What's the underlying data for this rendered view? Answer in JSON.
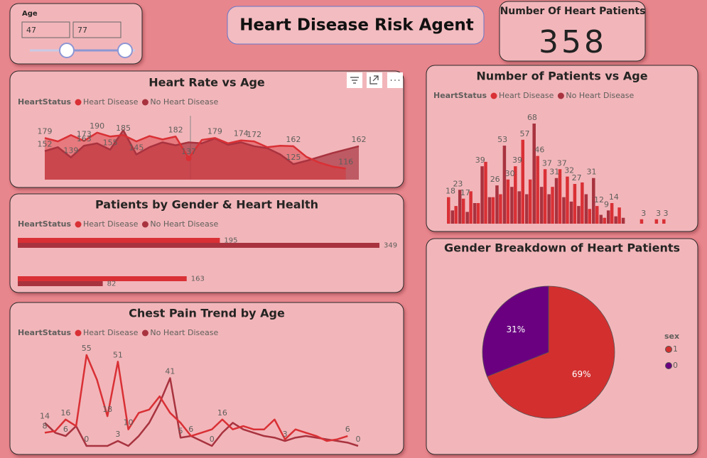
{
  "slicer": {
    "title": "Age",
    "range": [
      47,
      77
    ]
  },
  "header": {
    "title": "Heart Disease Risk Agent"
  },
  "kpi": {
    "label": "Number Of Heart Patients",
    "value": 358
  },
  "chart_data": [
    {
      "type": "area",
      "title": "Heart Rate vs Age",
      "legend_title": "HeartStatus",
      "ylim": [
        93,
        200
      ],
      "series": [
        {
          "name": "Heart Disease",
          "color": "#d93035",
          "values": [
            179,
            172,
            185,
            173,
            190,
            182,
            185,
            172,
            183,
            176,
            182,
            137,
            175,
            179,
            168,
            174,
            172,
            160,
            163,
            162,
            140,
            128,
            120,
            116,
            null
          ],
          "value_labels": [
            "179",
            null,
            null,
            "173",
            "190",
            null,
            "185",
            null,
            null,
            null,
            "182",
            "137",
            null,
            "179",
            null,
            "174",
            "172",
            null,
            null,
            "162",
            null,
            null,
            null,
            "116",
            null
          ]
        },
        {
          "name": "No Heart Disease",
          "color": "#a8333f",
          "values": [
            152,
            160,
            139,
            163,
            168,
            155,
            195,
            145,
            160,
            170,
            164,
            170,
            168,
            178,
            165,
            170,
            162,
            158,
            145,
            125,
            132,
            140,
            148,
            155,
            162
          ],
          "value_labels": [
            "152",
            null,
            "139",
            "163",
            null,
            "155",
            null,
            "145",
            null,
            null,
            null,
            null,
            null,
            null,
            null,
            null,
            null,
            null,
            null,
            "125",
            null,
            null,
            null,
            null,
            "162"
          ]
        }
      ]
    },
    {
      "type": "hbar",
      "title": "Patients by Gender & Heart Health",
      "legend_title": "HeartStatus",
      "categories": [
        null,
        null
      ],
      "xlim": [
        0,
        349
      ],
      "series": [
        {
          "name": "Heart Disease",
          "color": "#d93035",
          "values": [
            195,
            163
          ]
        },
        {
          "name": "No Heart Disease",
          "color": "#a8333f",
          "values": [
            349,
            82
          ]
        }
      ]
    },
    {
      "type": "line",
      "title": "Chest Pain Trend by Age",
      "legend_title": "HeartStatus",
      "ylim": [
        0,
        55
      ],
      "series": [
        {
          "name": "Heart Disease",
          "color": "#d93035",
          "values": [
            8,
            9,
            16,
            12,
            55,
            40,
            18,
            51,
            10,
            20,
            22,
            30,
            20,
            14,
            6,
            8,
            10,
            16,
            10,
            12,
            10,
            10,
            16,
            4,
            10,
            8,
            6,
            3,
            4,
            6,
            null
          ],
          "value_labels": [
            "8",
            null,
            "16",
            null,
            "55",
            null,
            "18",
            "51",
            "10",
            null,
            null,
            null,
            null,
            null,
            null,
            null,
            null,
            "16",
            null,
            null,
            null,
            null,
            null,
            null,
            null,
            null,
            null,
            null,
            null,
            "6",
            null
          ]
        },
        {
          "name": "No Heart Disease",
          "color": "#a8333f",
          "values": [
            14,
            8,
            6,
            12,
            0,
            0,
            0,
            3,
            0,
            6,
            14,
            26,
            41,
            5,
            6,
            3,
            0,
            8,
            14,
            10,
            8,
            6,
            5,
            3,
            5,
            6,
            5,
            4,
            3,
            2,
            0
          ],
          "value_labels": [
            "14",
            null,
            "6",
            null,
            "0",
            null,
            null,
            "3",
            null,
            null,
            null,
            null,
            "41",
            "5",
            "6",
            null,
            "0",
            null,
            null,
            null,
            null,
            null,
            null,
            "3",
            null,
            null,
            null,
            null,
            null,
            null,
            "0"
          ]
        }
      ]
    },
    {
      "type": "column",
      "title": "Number of Patients vs Age",
      "legend_title": "HeartStatus",
      "ylim": [
        0,
        68
      ],
      "series": [
        {
          "name": "Heart Disease",
          "color": "#d93035",
          "values": [
            18,
            12,
            17,
            22,
            14,
            42,
            18,
            20,
            30,
            39,
            57,
            30,
            46,
            37,
            25,
            37,
            32,
            27,
            28,
            10,
            12,
            4,
            14,
            11,
            0,
            0,
            3,
            0,
            3,
            3
          ],
          "value_labels": [
            "18",
            null,
            "17",
            null,
            null,
            null,
            null,
            null,
            "30",
            "39",
            "57",
            null,
            "46",
            "37",
            null,
            "37",
            "32",
            "27",
            null,
            null,
            "12",
            null,
            "14",
            null,
            null,
            null,
            "3",
            null,
            "3",
            "3"
          ]
        },
        {
          "name": "No Heart Disease",
          "color": "#a8333f",
          "values": [
            9,
            23,
            8,
            14,
            39,
            18,
            26,
            53,
            25,
            22,
            20,
            68,
            25,
            20,
            31,
            18,
            15,
            12,
            20,
            31,
            6,
            9,
            5,
            4,
            0,
            0,
            0,
            0,
            0,
            0
          ],
          "value_labels": [
            null,
            "23",
            null,
            null,
            "39",
            null,
            "26",
            "53",
            null,
            null,
            null,
            "68",
            null,
            null,
            "31",
            null,
            null,
            null,
            null,
            "31",
            null,
            "9",
            null,
            null,
            null,
            null,
            null,
            null,
            null,
            null
          ]
        }
      ]
    },
    {
      "type": "pie",
      "title": "Gender Breakdown of Heart Patients",
      "legend_title": "sex",
      "categories": [
        "1",
        "0"
      ],
      "values": [
        69,
        31
      ],
      "value_labels": [
        "69%",
        "31%"
      ],
      "colors": [
        "#d32f2f",
        "#6a0080"
      ]
    }
  ]
}
